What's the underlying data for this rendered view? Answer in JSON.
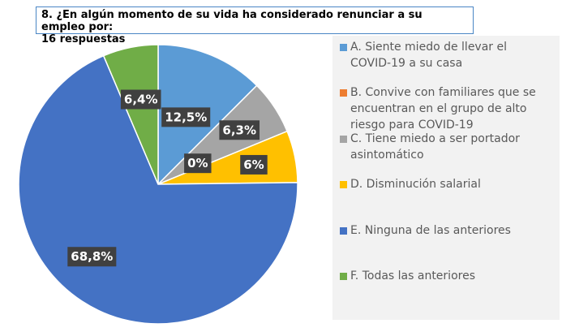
{
  "chart_data": {
    "type": "pie",
    "title_line1": "8. ¿En algún momento de su vida ha considerado renunciar a su empleo por:",
    "title_line2": "16 respuestas",
    "categories": [
      "A.   Siente miedo de llevar el COVID-19 a su casa",
      "B.   Convive con familiares que se encuentran en el grupo de alto riesgo para COVID-19",
      "C.   Tiene miedo a ser portador asintomático",
      "D.   Disminución salarial",
      "E.   Ninguna de las anteriores",
      "F.    Todas las anteriores"
    ],
    "values": [
      12.5,
      0,
      6.3,
      6,
      68.8,
      6.4
    ],
    "data_labels": [
      "12,5%",
      "0%",
      "6,3%",
      "6%",
      "68,8%",
      "6,4%"
    ],
    "colors": [
      "#5b9bd5",
      "#ed7d31",
      "#a5a5a5",
      "#ffc000",
      "#4472c4",
      "#70ad47"
    ],
    "legend_position": "right"
  },
  "legend": {
    "items": [
      {
        "line1": "A.   Siente miedo de llevar el",
        "line2": "COVID-19 a su casa",
        "color": "#5b9bd5"
      },
      {
        "line1": "B.   Convive con familiares que se",
        "line2": "encuentran en el grupo de alto",
        "line3": "riesgo para COVID-19",
        "color": "#ed7d31"
      },
      {
        "line1": "C.   Tiene miedo a ser portador",
        "line2": "asintomático",
        "color": "#a5a5a5"
      },
      {
        "line1": "D.   Disminución salarial",
        "color": "#ffc000"
      },
      {
        "line1": "E.   Ninguna de las anteriores",
        "color": "#4472c4"
      },
      {
        "line1": "F.    Todas las anteriores",
        "color": "#70ad47"
      }
    ]
  }
}
